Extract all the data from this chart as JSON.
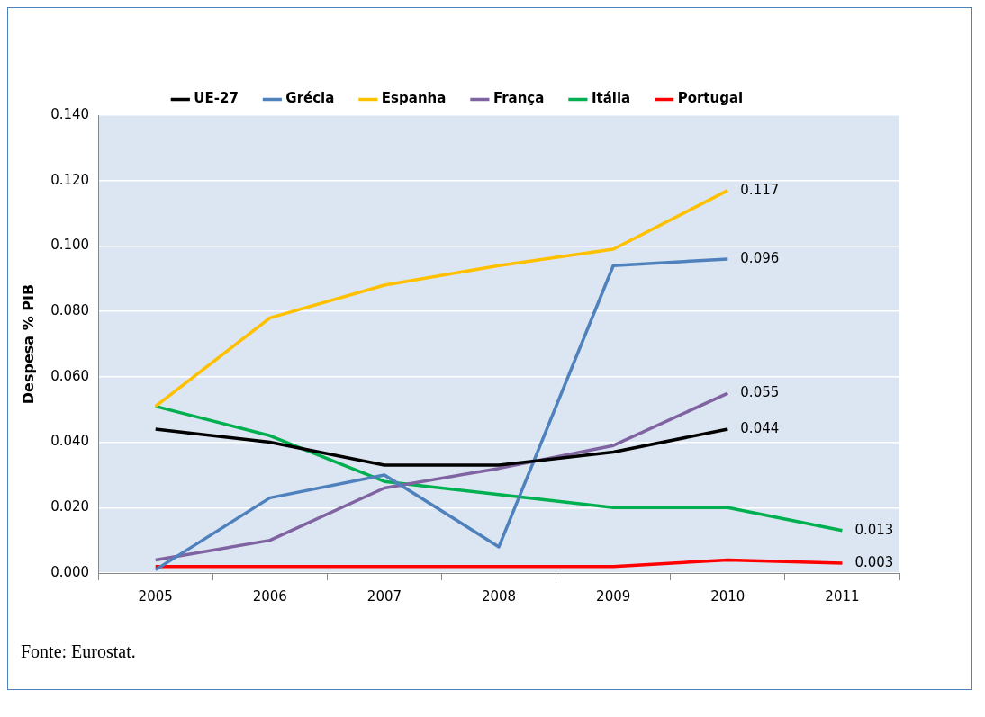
{
  "chart_data": {
    "type": "line",
    "ylabel": "Despesa % PIB",
    "categories": [
      "2005",
      "2006",
      "2007",
      "2008",
      "2009",
      "2010",
      "2011"
    ],
    "series": [
      {
        "name": "UE-27",
        "color": "#000000",
        "values": [
          0.044,
          0.04,
          0.033,
          0.033,
          0.037,
          0.044,
          null
        ],
        "value_labels": [
          null,
          null,
          null,
          null,
          null,
          "0.044",
          null
        ]
      },
      {
        "name": "Grécia",
        "color": "#4f81bd",
        "values": [
          0.001,
          0.023,
          0.03,
          0.008,
          0.094,
          0.096,
          null
        ],
        "value_labels": [
          null,
          null,
          null,
          null,
          null,
          "0.096",
          null
        ]
      },
      {
        "name": "Espanha",
        "color": "#ffc000",
        "values": [
          0.051,
          0.078,
          0.088,
          0.094,
          0.099,
          0.117,
          null
        ],
        "value_labels": [
          null,
          null,
          null,
          null,
          null,
          "0.117",
          null
        ]
      },
      {
        "name": "França",
        "color": "#8064a2",
        "values": [
          0.004,
          0.01,
          0.026,
          0.032,
          0.039,
          0.055,
          null
        ],
        "value_labels": [
          null,
          null,
          null,
          null,
          null,
          "0.055",
          null
        ]
      },
      {
        "name": "Itália",
        "color": "#00b050",
        "values": [
          0.051,
          0.042,
          0.028,
          0.024,
          0.02,
          0.02,
          0.013
        ],
        "value_labels": [
          null,
          null,
          null,
          null,
          null,
          null,
          "0.013"
        ]
      },
      {
        "name": "Portugal",
        "color": "#ff0000",
        "values": [
          0.002,
          0.002,
          0.002,
          0.002,
          0.002,
          0.004,
          0.003
        ],
        "value_labels": [
          null,
          null,
          null,
          null,
          null,
          null,
          "0.003"
        ]
      }
    ],
    "ylim": [
      0,
      0.14
    ],
    "yticks": [
      {
        "value": 0,
        "label": "0.000"
      },
      {
        "value": 0.02,
        "label": "0.020"
      },
      {
        "value": 0.04,
        "label": "0.040"
      },
      {
        "value": 0.06,
        "label": "0.060"
      },
      {
        "value": 0.08,
        "label": "0.080"
      },
      {
        "value": 0.1,
        "label": "0.100"
      },
      {
        "value": 0.12,
        "label": "0.120"
      },
      {
        "value": 0.14,
        "label": "0.140"
      }
    ],
    "grid": "y",
    "legend": "top",
    "marker": "none",
    "line_style": "solid",
    "annotations": [
      "Fonte: Eurostat."
    ]
  }
}
